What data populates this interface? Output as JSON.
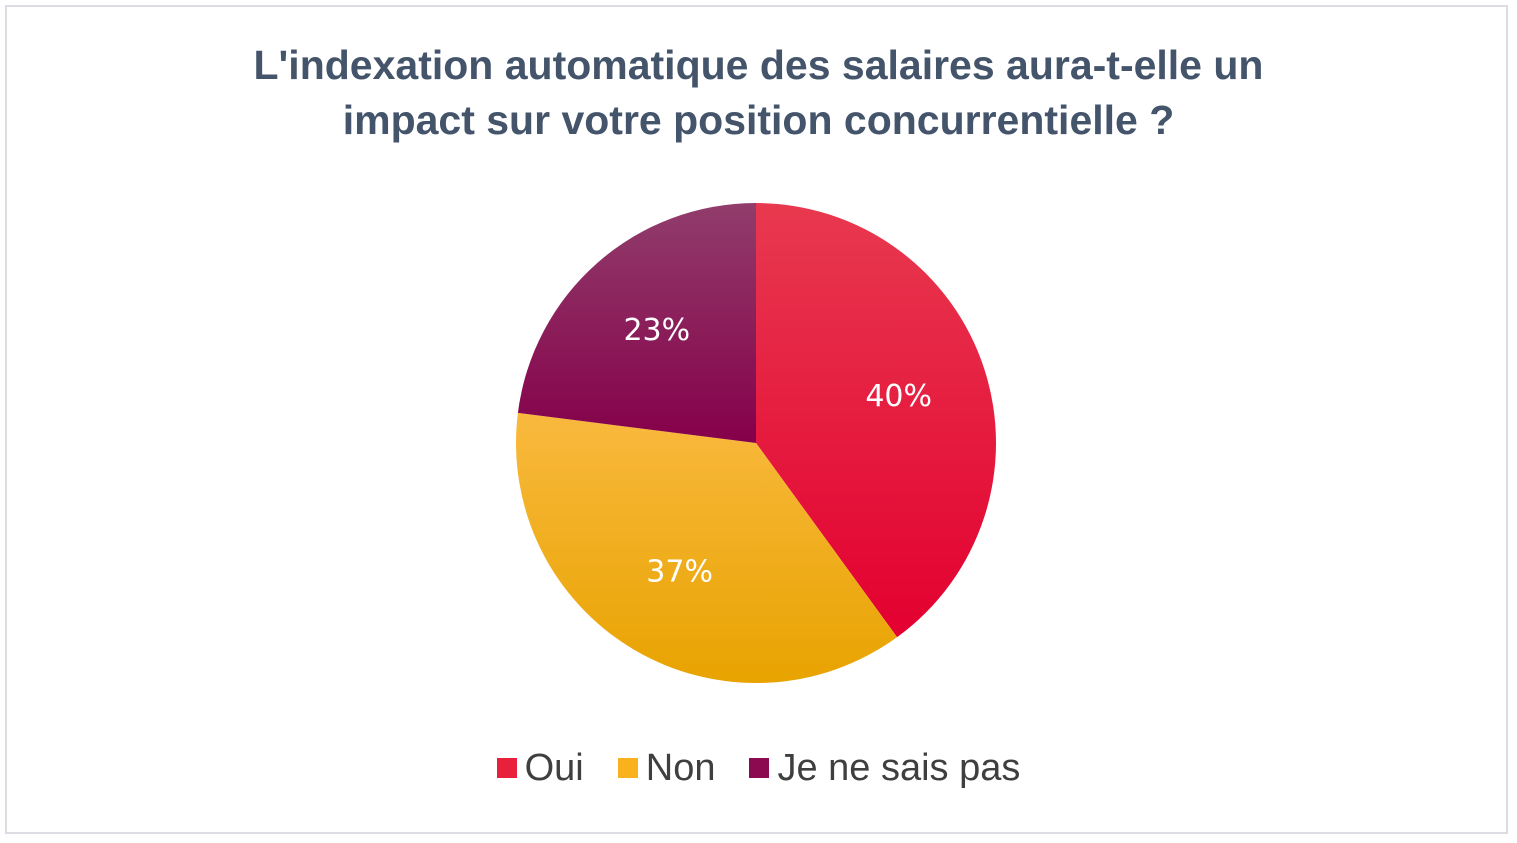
{
  "chart_data": {
    "type": "pie",
    "title": "L'indexation automatique des salaires aura-t-elle un impact sur votre position concurrentielle ?",
    "title_lines": [
      "L'indexation automatique des salaires aura-t-elle un",
      "impact sur votre position concurrentielle ?"
    ],
    "categories": [
      "Oui",
      "Non",
      "Je ne sais pas"
    ],
    "values": [
      40,
      37,
      23
    ],
    "labels": [
      "40%",
      "37%",
      "23%"
    ],
    "colors": [
      "#e8203c",
      "#f9b21b",
      "#8b0a50"
    ],
    "legend": "bottom"
  }
}
